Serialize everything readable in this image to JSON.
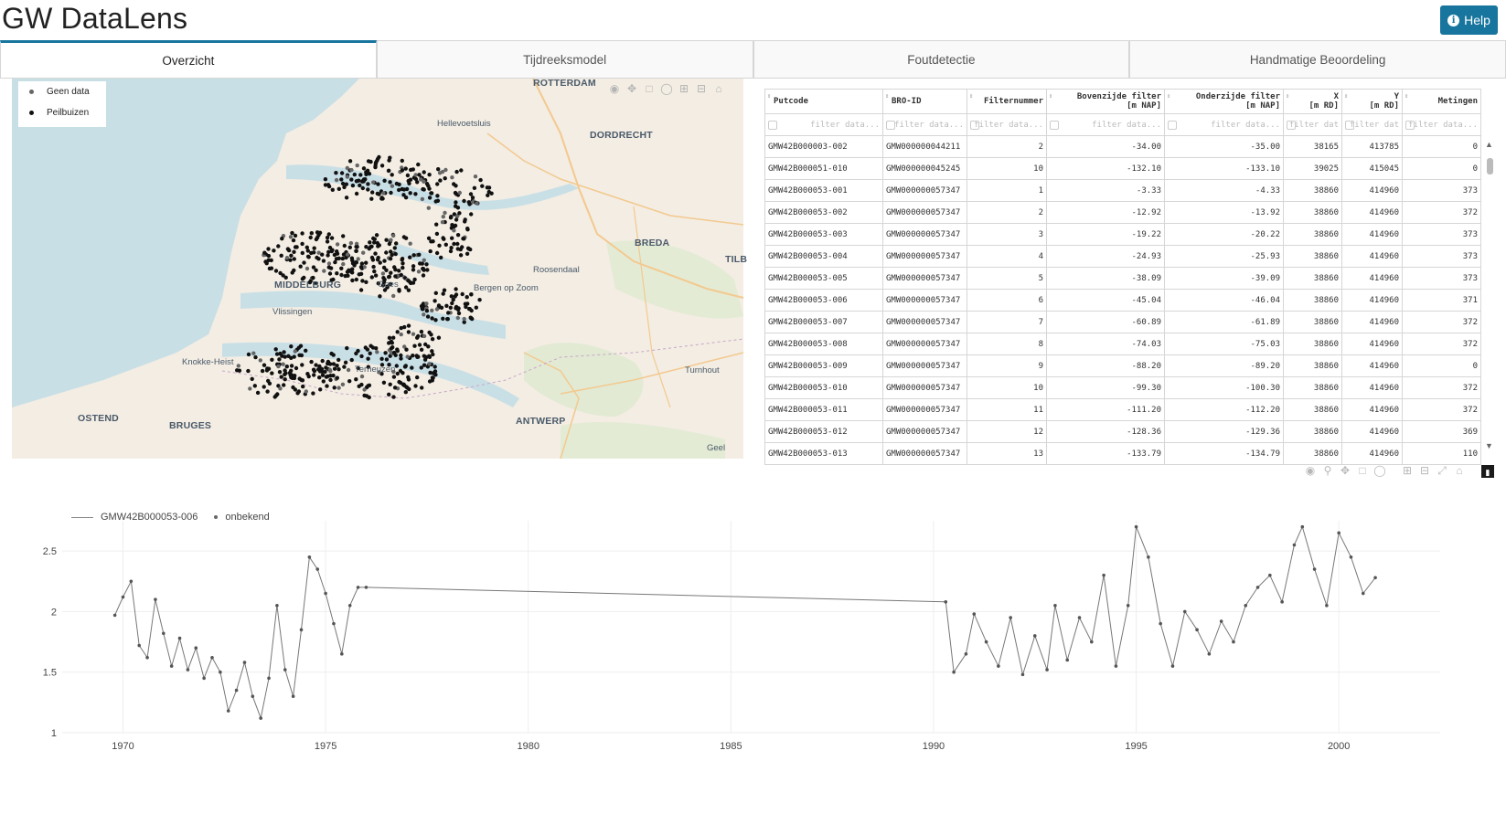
{
  "app": {
    "title": "GW DataLens",
    "help_label": "Help"
  },
  "tabs": [
    {
      "label": "Overzicht",
      "active": true
    },
    {
      "label": "Tijdreeksmodel",
      "active": false
    },
    {
      "label": "Foutdetectie",
      "active": false
    },
    {
      "label": "Handmatige Beoordeling",
      "active": false
    }
  ],
  "map": {
    "legend": [
      {
        "label": "Geen data",
        "color": "#666666"
      },
      {
        "label": "Peilbuizen",
        "color": "#111111"
      }
    ],
    "places": {
      "rotterdam": "ROTTERDAM",
      "hellevoetsluis": "Hellevoetsluis",
      "dordrecht": "DORDRECHT",
      "breda": "BREDA",
      "tilb": "TILB",
      "roosendaal": "Roosendaal",
      "bergen": "Bergen op Zoom",
      "middelburg": "MIDDELBURG",
      "goes": "Goes",
      "vlissingen": "Vlissingen",
      "knokke": "Knokke-Heist",
      "terneuzen": "Terneuzen",
      "turnhout": "Turnhout",
      "ostend": "OSTEND",
      "bruges": "BRUGES",
      "antwerp": "ANTWERP",
      "geel": "Geel"
    },
    "colors": {
      "water": "#c9dfe6",
      "land": "#f3ede3",
      "green": "#dde9cf",
      "road": "#f3c98f"
    }
  },
  "table": {
    "filter_placeholder": "filter data...",
    "filter_placeholder_short": "filter dat",
    "columns": [
      {
        "label": "Putcode",
        "unit": ""
      },
      {
        "label": "BRO-ID",
        "unit": ""
      },
      {
        "label": "Filternummer",
        "unit": ""
      },
      {
        "label": "Bovenzijde filter",
        "unit": "[m NAP]"
      },
      {
        "label": "Onderzijde filter",
        "unit": "[m NAP]"
      },
      {
        "label": "X",
        "unit": "[m RD]"
      },
      {
        "label": "Y",
        "unit": "[m RD]"
      },
      {
        "label": "Metingen",
        "unit": ""
      }
    ],
    "rows": [
      [
        "GMW42B000003-002",
        "GMW000000044211",
        "2",
        "-34.00",
        "-35.00",
        "38165",
        "413785",
        "0"
      ],
      [
        "GMW42B000051-010",
        "GMW000000045245",
        "10",
        "-132.10",
        "-133.10",
        "39025",
        "415045",
        "0"
      ],
      [
        "GMW42B000053-001",
        "GMW000000057347",
        "1",
        "-3.33",
        "-4.33",
        "38860",
        "414960",
        "373"
      ],
      [
        "GMW42B000053-002",
        "GMW000000057347",
        "2",
        "-12.92",
        "-13.92",
        "38860",
        "414960",
        "372"
      ],
      [
        "GMW42B000053-003",
        "GMW000000057347",
        "3",
        "-19.22",
        "-20.22",
        "38860",
        "414960",
        "373"
      ],
      [
        "GMW42B000053-004",
        "GMW000000057347",
        "4",
        "-24.93",
        "-25.93",
        "38860",
        "414960",
        "373"
      ],
      [
        "GMW42B000053-005",
        "GMW000000057347",
        "5",
        "-38.09",
        "-39.09",
        "38860",
        "414960",
        "373"
      ],
      [
        "GMW42B000053-006",
        "GMW000000057347",
        "6",
        "-45.04",
        "-46.04",
        "38860",
        "414960",
        "371"
      ],
      [
        "GMW42B000053-007",
        "GMW000000057347",
        "7",
        "-60.89",
        "-61.89",
        "38860",
        "414960",
        "372"
      ],
      [
        "GMW42B000053-008",
        "GMW000000057347",
        "8",
        "-74.03",
        "-75.03",
        "38860",
        "414960",
        "372"
      ],
      [
        "GMW42B000053-009",
        "GMW000000057347",
        "9",
        "-88.20",
        "-89.20",
        "38860",
        "414960",
        "0"
      ],
      [
        "GMW42B000053-010",
        "GMW000000057347",
        "10",
        "-99.30",
        "-100.30",
        "38860",
        "414960",
        "372"
      ],
      [
        "GMW42B000053-011",
        "GMW000000057347",
        "11",
        "-111.20",
        "-112.20",
        "38860",
        "414960",
        "372"
      ],
      [
        "GMW42B000053-012",
        "GMW000000057347",
        "12",
        "-128.36",
        "-129.36",
        "38860",
        "414960",
        "369"
      ],
      [
        "GMW42B000053-013",
        "GMW000000057347",
        "13",
        "-133.79",
        "-134.79",
        "38860",
        "414960",
        "110"
      ]
    ]
  },
  "chart_data": {
    "type": "line",
    "title": "",
    "xlabel": "",
    "ylabel": "",
    "xlim": [
      1968.5,
      2002.5
    ],
    "ylim": [
      1.0,
      2.75
    ],
    "xticks": [
      1970,
      1975,
      1980,
      1985,
      1990,
      1995,
      2000
    ],
    "yticks": [
      1,
      1.5,
      2,
      2.5
    ],
    "legend": [
      "GMW42B000053-006",
      "onbekend"
    ],
    "series": [
      {
        "name": "GMW42B000053-006",
        "x": [
          1969.8,
          1970.0,
          1970.2,
          1970.4,
          1970.6,
          1970.8,
          1971.0,
          1971.2,
          1971.4,
          1971.6,
          1971.8,
          1972.0,
          1972.2,
          1972.4,
          1972.6,
          1972.8,
          1973.0,
          1973.2,
          1973.4,
          1973.6,
          1973.8,
          1974.0,
          1974.2,
          1974.4,
          1974.6,
          1974.8,
          1975.0,
          1975.2,
          1975.4,
          1975.6,
          1975.8,
          1976.0,
          1990.3,
          1990.5,
          1990.8,
          1991.0,
          1991.3,
          1991.6,
          1991.9,
          1992.2,
          1992.5,
          1992.8,
          1993.0,
          1993.3,
          1993.6,
          1993.9,
          1994.2,
          1994.5,
          1994.8,
          1995.0,
          1995.3,
          1995.6,
          1995.9,
          1996.2,
          1996.5,
          1996.8,
          1997.1,
          1997.4,
          1997.7,
          1998.0,
          1998.3,
          1998.6,
          1998.9,
          1999.1,
          1999.4,
          1999.7,
          2000.0,
          2000.3,
          2000.6,
          2000.9
        ],
        "y": [
          1.97,
          2.12,
          2.25,
          1.72,
          1.62,
          2.1,
          1.82,
          1.55,
          1.78,
          1.52,
          1.7,
          1.45,
          1.62,
          1.5,
          1.18,
          1.35,
          1.58,
          1.3,
          1.12,
          1.45,
          2.05,
          1.52,
          1.3,
          1.85,
          2.45,
          2.35,
          2.15,
          1.9,
          1.65,
          2.05,
          2.2,
          2.2,
          2.08,
          1.5,
          1.65,
          1.98,
          1.75,
          1.55,
          1.95,
          1.48,
          1.8,
          1.52,
          2.05,
          1.6,
          1.95,
          1.75,
          2.3,
          1.55,
          2.05,
          2.7,
          2.45,
          1.9,
          1.55,
          2.0,
          1.85,
          1.65,
          1.92,
          1.75,
          2.05,
          2.2,
          2.3,
          2.08,
          2.55,
          2.7,
          2.35,
          2.05,
          2.65,
          2.45,
          2.15,
          2.28
        ]
      }
    ]
  }
}
